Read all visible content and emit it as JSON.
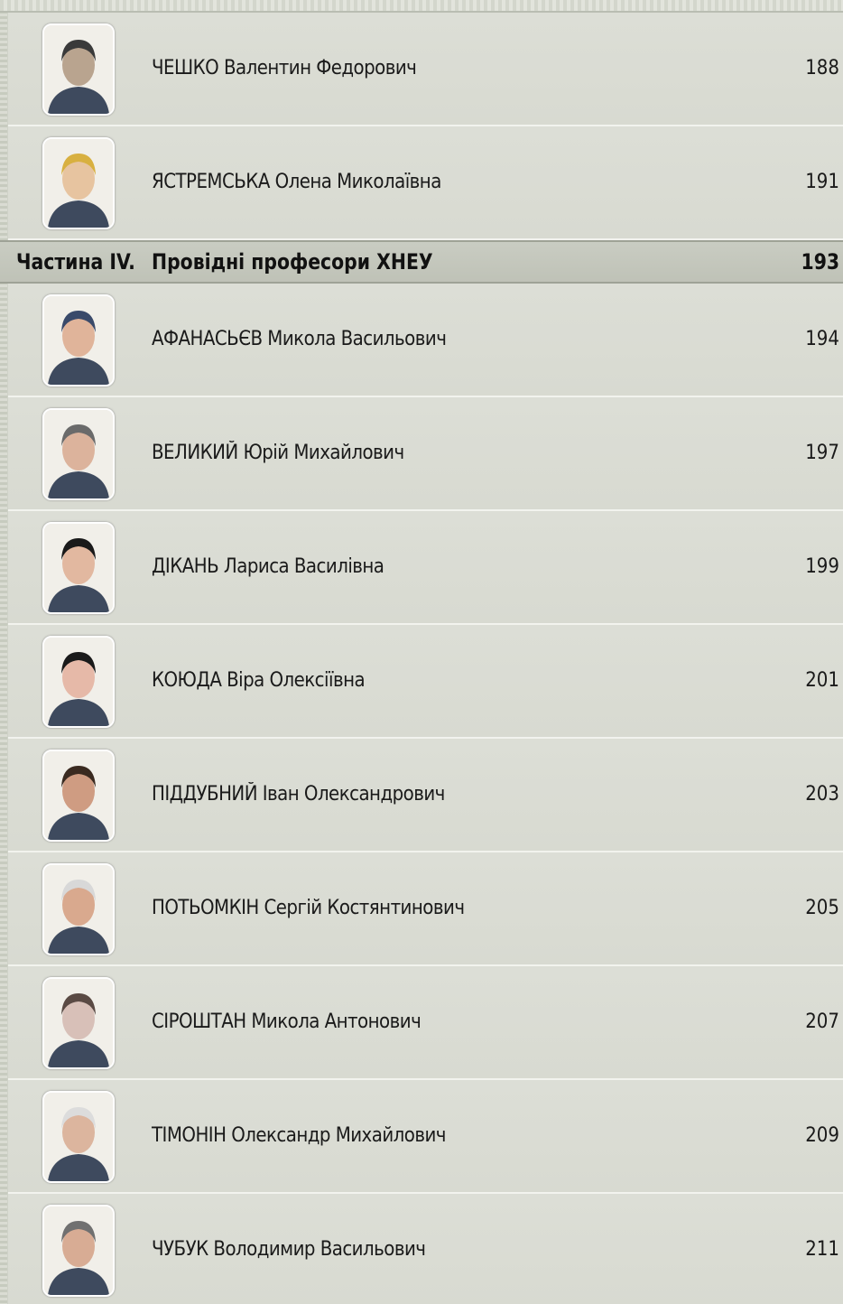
{
  "entries": [
    {
      "name": "ЧЕШКО Валентин Федорович",
      "page": 188
    },
    {
      "name": "ЯСТРЕМСЬКА Олена Миколаївна",
      "page": 191
    }
  ],
  "section": {
    "label": "Частина IV.",
    "title": "Провідні професори ХНЕУ",
    "page": 193
  },
  "section_entries": [
    {
      "name": "АФАНАСЬЄВ Микола Васильович",
      "page": 194
    },
    {
      "name": "ВЕЛИКИЙ Юрій Михайлович",
      "page": 197
    },
    {
      "name": "ДІКАНЬ Лариса Василівна",
      "page": 199
    },
    {
      "name": "КОЮДА Віра Олексіївна",
      "page": 201
    },
    {
      "name": "ПІДДУБНИЙ Іван Олександрович",
      "page": 203
    },
    {
      "name": "ПОТЬОМКІН Сергій Костянтинович",
      "page": 205
    },
    {
      "name": "СІРОШТАН Микола Антонович",
      "page": 207
    },
    {
      "name": "ТІМОНІН Олександр Михайлович",
      "page": 209
    },
    {
      "name": "ЧУБУК Володимир Васильович",
      "page": 211
    }
  ]
}
